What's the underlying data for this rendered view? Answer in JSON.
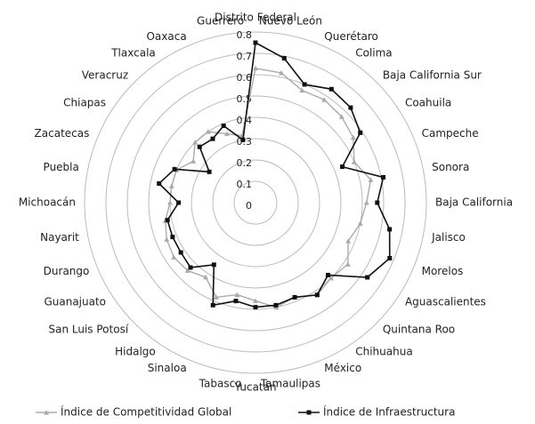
{
  "chart_data": {
    "type": "radar",
    "categories": [
      "Distrito Federal",
      "Nuevo León",
      "Querétaro",
      "Colima",
      "Baja California Sur",
      "Coahuila",
      "Campeche",
      "Sonora",
      "Baja California",
      "Jalisco",
      "Morelos",
      "Aguascalientes",
      "Quintana Roo",
      "Chihuahua",
      "México",
      "Tamaulipas",
      "Yucatán",
      "Tabasco",
      "Sinaloa",
      "Hidalgo",
      "San Luis Potosí",
      "Guanajuato",
      "Durango",
      "Nayarit",
      "Michoacán",
      "Puebla",
      "Zacatecas",
      "Chiapas",
      "Veracruz",
      "Tlaxcala",
      "Oaxaca",
      "Guerrero"
    ],
    "series": [
      {
        "name": "Índice de Competitividad Global",
        "color": "#aaaaaa",
        "marker": "triangle",
        "values": [
          0.63,
          0.62,
          0.57,
          0.58,
          0.57,
          0.55,
          0.5,
          0.55,
          0.52,
          0.5,
          0.47,
          0.52,
          0.5,
          0.52,
          0.48,
          0.5,
          0.46,
          0.44,
          0.48,
          0.42,
          0.45,
          0.46,
          0.45,
          0.43,
          0.4,
          0.4,
          0.4,
          0.35,
          0.4,
          0.4,
          0.35,
          0.32
        ]
      },
      {
        "name": "Índice de Infraestructura",
        "color": "#111111",
        "marker": "square",
        "values": [
          0.75,
          0.69,
          0.6,
          0.64,
          0.63,
          0.59,
          0.44,
          0.61,
          0.57,
          0.64,
          0.68,
          0.63,
          0.48,
          0.52,
          0.48,
          0.49,
          0.49,
          0.47,
          0.52,
          0.35,
          0.43,
          0.42,
          0.42,
          0.42,
          0.36,
          0.46,
          0.41,
          0.26,
          0.37,
          0.36,
          0.39,
          0.3
        ]
      }
    ],
    "ylim": [
      0,
      0.8
    ],
    "yticks": [
      0,
      0.1,
      0.2,
      0.3,
      0.4,
      0.5,
      0.6,
      0.7,
      0.8
    ],
    "grid": true
  }
}
